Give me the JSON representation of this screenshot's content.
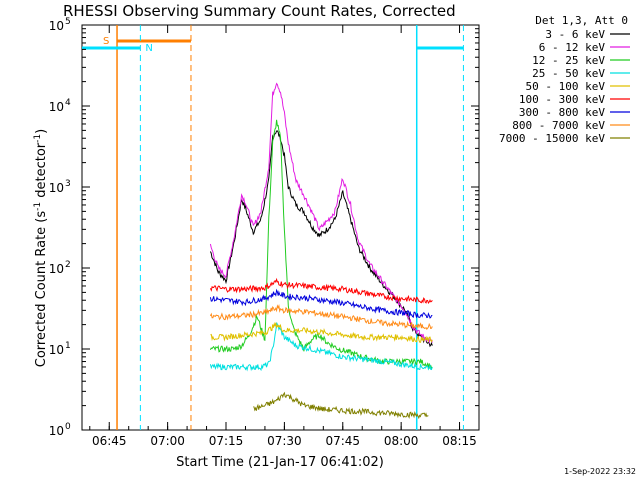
{
  "chart_data": {
    "type": "line",
    "title": "RHESSI Observing Summary Count Rates, Corrected",
    "xlabel": "Start Time (21-Jan-17 06:41:02)",
    "ylabel_main": "Corrected Count Rate (s",
    "ylabel_sup1": "-1",
    "ylabel_mid": " detector",
    "ylabel_sup2": "-1",
    "ylabel_end": ")",
    "y_scale": "log",
    "ylim": [
      1,
      100000
    ],
    "xlim": [
      "06:38",
      "08:20"
    ],
    "x_ticks": [
      "06:45",
      "07:00",
      "07:15",
      "07:30",
      "07:45",
      "08:00",
      "08:15"
    ],
    "y_ticks": [
      {
        "value": 1,
        "base": "10",
        "exp": "0"
      },
      {
        "value": 10,
        "base": "10",
        "exp": "1"
      },
      {
        "value": 100,
        "base": "10",
        "exp": "2"
      },
      {
        "value": 1000,
        "base": "10",
        "exp": "3"
      },
      {
        "value": 10000,
        "base": "10",
        "exp": "4"
      },
      {
        "value": 100000,
        "base": "10",
        "exp": "5"
      }
    ],
    "legend_header": "Det 1,3, Att 0",
    "legend_position": "right",
    "series": [
      {
        "name": "3 - 6 keV",
        "color": "#000000",
        "x": [
          "07:11",
          "07:13",
          "07:15",
          "07:17",
          "07:19",
          "07:20",
          "07:22",
          "07:24",
          "07:26",
          "07:27",
          "07:28",
          "07:29",
          "07:30",
          "07:31",
          "07:33",
          "07:35",
          "07:37",
          "07:39",
          "07:41",
          "07:43",
          "07:45",
          "07:47",
          "07:49",
          "07:52",
          "07:55",
          "07:58",
          "08:01",
          "08:03",
          "08:05",
          "08:08"
        ],
        "y": [
          160,
          90,
          70,
          200,
          700,
          550,
          280,
          400,
          1200,
          4200,
          5000,
          4000,
          2400,
          1000,
          600,
          500,
          330,
          250,
          300,
          400,
          850,
          400,
          180,
          100,
          65,
          45,
          30,
          18,
          14,
          11
        ]
      },
      {
        "name": "6 - 12 keV",
        "color": "#e21ee2",
        "x": [
          "07:11",
          "07:13",
          "07:15",
          "07:17",
          "07:19",
          "07:20",
          "07:22",
          "07:24",
          "07:26",
          "07:27",
          "07:28",
          "07:29",
          "07:30",
          "07:31",
          "07:33",
          "07:35",
          "07:37",
          "07:39",
          "07:41",
          "07:43",
          "07:45",
          "07:47",
          "07:49",
          "07:52",
          "07:55",
          "07:58",
          "08:01",
          "08:03",
          "08:05",
          "08:08"
        ],
        "y": [
          190,
          100,
          80,
          230,
          800,
          650,
          320,
          500,
          1800,
          14000,
          20000,
          15000,
          8000,
          3500,
          1200,
          800,
          500,
          300,
          380,
          500,
          1300,
          600,
          220,
          110,
          70,
          45,
          30,
          19,
          15,
          12
        ]
      },
      {
        "name": "12 - 25 keV",
        "color": "#22cc22",
        "x": [
          "07:11",
          "07:14",
          "07:17",
          "07:19",
          "07:21",
          "07:23",
          "07:25",
          "07:26",
          "07:27",
          "07:28",
          "07:29",
          "07:30",
          "07:31",
          "07:32",
          "07:33",
          "07:35",
          "07:37",
          "07:39",
          "07:41",
          "07:44",
          "07:47",
          "07:50",
          "07:55",
          "08:00",
          "08:05",
          "08:08"
        ],
        "y": [
          10,
          10,
          10,
          11,
          15,
          25,
          13,
          400,
          3500,
          6500,
          4000,
          300,
          35,
          20,
          15,
          10,
          13,
          15,
          12,
          10,
          9,
          8,
          7,
          7,
          7,
          6
        ]
      },
      {
        "name": "25 - 50 keV",
        "color": "#00e0e0",
        "x": [
          "07:11",
          "07:15",
          "07:20",
          "07:24",
          "07:26",
          "07:27",
          "07:28",
          "07:29",
          "07:30",
          "07:33",
          "07:37",
          "07:41",
          "07:45",
          "07:50",
          "07:55",
          "08:00",
          "08:05",
          "08:08"
        ],
        "y": [
          6,
          6,
          6,
          6,
          6.5,
          10,
          20,
          17,
          14,
          11,
          10,
          9,
          8,
          7.5,
          7,
          6.5,
          6,
          6
        ]
      },
      {
        "name": "50 - 100 keV",
        "color": "#e0c000",
        "x": [
          "07:11",
          "07:15",
          "07:20",
          "07:25",
          "07:28",
          "07:30",
          "07:35",
          "07:40",
          "07:45",
          "07:50",
          "07:55",
          "08:00",
          "08:05",
          "08:08"
        ],
        "y": [
          14,
          14,
          15,
          16,
          20,
          17,
          17,
          16,
          15,
          14,
          14,
          14,
          13,
          13
        ]
      },
      {
        "name": "100 - 300 keV",
        "color": "#ff0000",
        "x": [
          "07:11",
          "07:15",
          "07:20",
          "07:25",
          "07:28",
          "07:30",
          "07:35",
          "07:40",
          "07:45",
          "07:50",
          "07:55",
          "08:00",
          "08:05",
          "08:08"
        ],
        "y": [
          57,
          55,
          55,
          57,
          68,
          62,
          60,
          57,
          55,
          50,
          45,
          42,
          40,
          40
        ]
      },
      {
        "name": "300 - 800 keV",
        "color": "#0000dd",
        "x": [
          "07:11",
          "07:15",
          "07:20",
          "07:25",
          "07:28",
          "07:30",
          "07:35",
          "07:40",
          "07:45",
          "07:50",
          "07:55",
          "08:00",
          "08:05",
          "08:08"
        ],
        "y": [
          42,
          40,
          38,
          42,
          50,
          45,
          43,
          40,
          37,
          33,
          30,
          28,
          26,
          26
        ]
      },
      {
        "name": "800 - 7000 keV",
        "color": "#ff8c1a",
        "x": [
          "07:11",
          "07:15",
          "07:20",
          "07:25",
          "07:28",
          "07:30",
          "07:35",
          "07:40",
          "07:45",
          "07:50",
          "07:55",
          "08:00",
          "08:05",
          "08:08"
        ],
        "y": [
          25,
          25,
          26,
          28,
          32,
          30,
          29,
          27,
          25,
          23,
          21,
          20,
          19,
          19
        ]
      },
      {
        "name": "7000 - 15000 keV",
        "color": "#808000",
        "x": [
          "07:22",
          "07:25",
          "07:28",
          "07:30",
          "07:33",
          "07:35",
          "07:38",
          "07:40",
          "08:07"
        ],
        "y": [
          1.8,
          2.0,
          2.3,
          2.8,
          2.3,
          2.0,
          1.9,
          1.8,
          1.5
        ]
      }
    ],
    "annotations": {
      "saa_label": "S",
      "night_label": "N",
      "saa_start": "06:47",
      "saa_end": "07:06",
      "night_intervals": [
        [
          "06:38",
          "06:53"
        ],
        [
          "08:04",
          "08:16"
        ]
      ],
      "colors": {
        "saa": "#ff7f00",
        "night": "#00e0ff",
        "axis": "#000000"
      }
    }
  },
  "footer": {
    "timestamp": "1-Sep-2022 23:32"
  }
}
